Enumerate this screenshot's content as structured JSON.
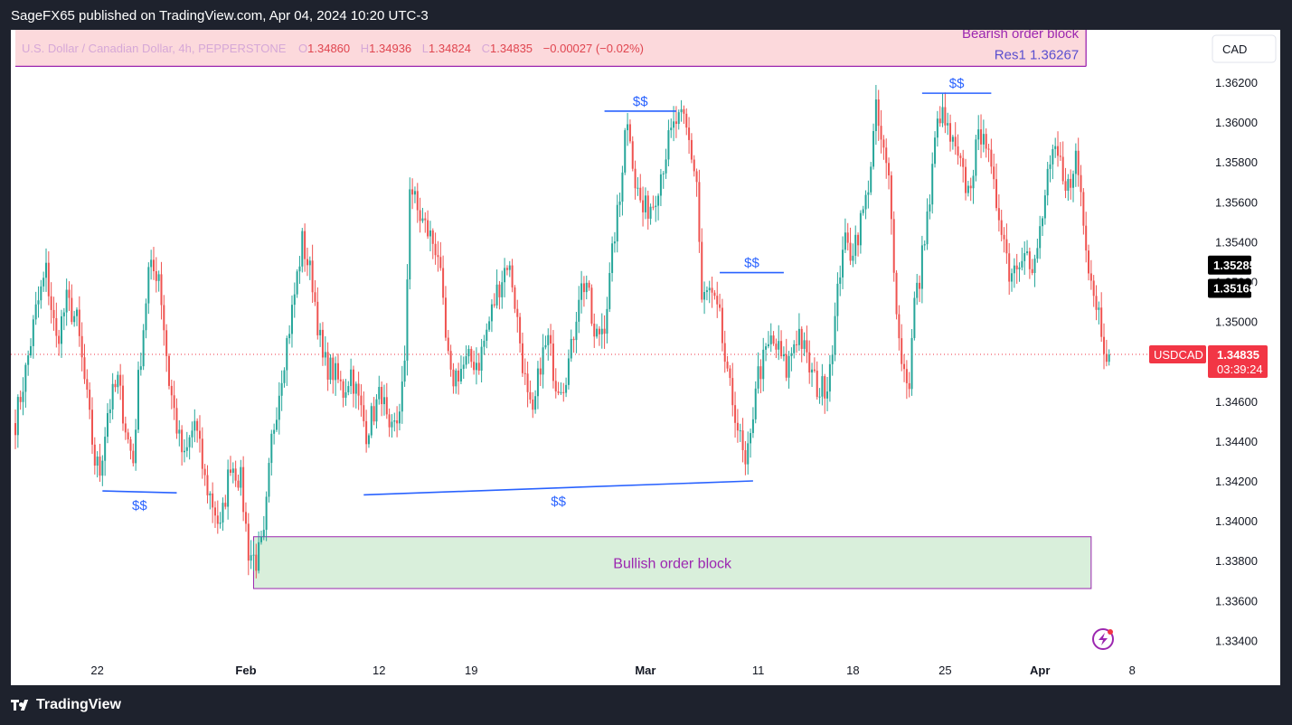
{
  "header": {
    "published_text": "SageFX65 published on TradingView.com, Apr 04, 2024 10:20 UTC-3"
  },
  "footer": {
    "brand": "TradingView"
  },
  "legend": {
    "symbol_desc": "U.S. Dollar / Canadian Dollar, 4h, PEPPERSTONE",
    "o_label": "O",
    "o_value": "1.34860",
    "h_label": "H",
    "h_value": "1.34936",
    "l_label": "L",
    "l_value": "1.34824",
    "c_label": "C",
    "c_value": "1.34835",
    "change": "−0.00027 (−0.02%)"
  },
  "currency_button": "CAD",
  "colors": {
    "up": "#26a69a",
    "down": "#ef5350",
    "annotation_blue": "#2962ff",
    "bearish_fill": "#fcd9dc",
    "bullish_fill": "#d9efdb",
    "zone_border": "#9c27b0",
    "zone_text": "#9c27b0",
    "last_price_bg": "#f23645",
    "marker_bg": "#000000"
  },
  "chart_data": {
    "type": "candlestick",
    "symbol": "USDCAD",
    "timeframe": "4h",
    "ylim": [
      1.333,
      1.3625
    ],
    "y_ticks": [
      "1.36200",
      "1.36000",
      "1.35800",
      "1.35600",
      "1.35400",
      "1.35200",
      "1.35000",
      "1.34800",
      "1.34600",
      "1.34400",
      "1.34200",
      "1.34000",
      "1.33800",
      "1.33600",
      "1.33400"
    ],
    "x_ticks": [
      {
        "label": "22",
        "bar": 32,
        "major": false
      },
      {
        "label": "Feb",
        "bar": 90,
        "major": true
      },
      {
        "label": "12",
        "bar": 142,
        "major": false
      },
      {
        "label": "19",
        "bar": 178,
        "major": false
      },
      {
        "label": "Mar",
        "bar": 246,
        "major": true
      },
      {
        "label": "11",
        "bar": 290,
        "major": false
      },
      {
        "label": "18",
        "bar": 327,
        "major": false
      },
      {
        "label": "25",
        "bar": 363,
        "major": false
      },
      {
        "label": "Apr",
        "bar": 400,
        "major": true
      },
      {
        "label": "8",
        "bar": 436,
        "major": false
      }
    ],
    "waypoints": [
      [
        0,
        1.345
      ],
      [
        4,
        1.3475
      ],
      [
        8,
        1.3505
      ],
      [
        12,
        1.3525
      ],
      [
        16,
        1.349
      ],
      [
        20,
        1.351
      ],
      [
        24,
        1.35
      ],
      [
        28,
        1.346
      ],
      [
        31,
        1.343
      ],
      [
        33,
        1.3425
      ],
      [
        36,
        1.3455
      ],
      [
        40,
        1.347
      ],
      [
        44,
        1.344
      ],
      [
        46,
        1.343
      ],
      [
        48,
        1.347
      ],
      [
        52,
        1.3525
      ],
      [
        56,
        1.3525
      ],
      [
        60,
        1.347
      ],
      [
        64,
        1.344
      ],
      [
        66,
        1.343
      ],
      [
        70,
        1.345
      ],
      [
        74,
        1.342
      ],
      [
        78,
        1.3405
      ],
      [
        80,
        1.3395
      ],
      [
        84,
        1.343
      ],
      [
        88,
        1.342
      ],
      [
        91,
        1.3385
      ],
      [
        94,
        1.338
      ],
      [
        97,
        1.339
      ],
      [
        100,
        1.344
      ],
      [
        104,
        1.3475
      ],
      [
        108,
        1.3505
      ],
      [
        112,
        1.354
      ],
      [
        116,
        1.352
      ],
      [
        120,
        1.348
      ],
      [
        124,
        1.3475
      ],
      [
        128,
        1.3465
      ],
      [
        131,
        1.3475
      ],
      [
        135,
        1.3455
      ],
      [
        137,
        1.3445
      ],
      [
        140,
        1.3455
      ],
      [
        143,
        1.3465
      ],
      [
        146,
        1.344
      ],
      [
        149,
        1.345
      ],
      [
        152,
        1.3475
      ],
      [
        154,
        1.357
      ],
      [
        157,
        1.3555
      ],
      [
        161,
        1.3545
      ],
      [
        165,
        1.3535
      ],
      [
        168,
        1.349
      ],
      [
        170,
        1.347
      ],
      [
        173,
        1.3475
      ],
      [
        177,
        1.348
      ],
      [
        181,
        1.348
      ],
      [
        184,
        1.3495
      ],
      [
        188,
        1.3515
      ],
      [
        192,
        1.353
      ],
      [
        194,
        1.352
      ],
      [
        197,
        1.349
      ],
      [
        200,
        1.346
      ],
      [
        202,
        1.345
      ],
      [
        205,
        1.348
      ],
      [
        208,
        1.349
      ],
      [
        211,
        1.347
      ],
      [
        214,
        1.347
      ],
      [
        217,
        1.3485
      ],
      [
        220,
        1.3515
      ],
      [
        223,
        1.352
      ],
      [
        226,
        1.349
      ],
      [
        230,
        1.35
      ],
      [
        232,
        1.352
      ],
      [
        234,
        1.3545
      ],
      [
        236,
        1.356
      ],
      [
        238,
        1.36
      ],
      [
        240,
        1.3595
      ],
      [
        242,
        1.357
      ],
      [
        245,
        1.3555
      ],
      [
        249,
        1.356
      ],
      [
        252,
        1.3575
      ],
      [
        255,
        1.359
      ],
      [
        258,
        1.36
      ],
      [
        261,
        1.36
      ],
      [
        263,
        1.359
      ],
      [
        266,
        1.357
      ],
      [
        268,
        1.351
      ],
      [
        271,
        1.3515
      ],
      [
        275,
        1.35
      ],
      [
        278,
        1.347
      ],
      [
        281,
        1.3455
      ],
      [
        283,
        1.344
      ],
      [
        285,
        1.3425
      ],
      [
        287,
        1.344
      ],
      [
        289,
        1.347
      ],
      [
        292,
        1.348
      ],
      [
        295,
        1.349
      ],
      [
        298,
        1.3485
      ],
      [
        301,
        1.3475
      ],
      [
        304,
        1.349
      ],
      [
        306,
        1.3495
      ],
      [
        309,
        1.348
      ],
      [
        312,
        1.347
      ],
      [
        314,
        1.3465
      ],
      [
        317,
        1.347
      ],
      [
        320,
        1.35
      ],
      [
        323,
        1.354
      ],
      [
        326,
        1.3535
      ],
      [
        329,
        1.3545
      ],
      [
        332,
        1.356
      ],
      [
        334,
        1.358
      ],
      [
        336,
        1.3605
      ],
      [
        338,
        1.359
      ],
      [
        341,
        1.357
      ],
      [
        343,
        1.353
      ],
      [
        345,
        1.349
      ],
      [
        347,
        1.3475
      ],
      [
        349,
        1.347
      ],
      [
        351,
        1.351
      ],
      [
        353,
        1.352
      ],
      [
        355,
        1.3545
      ],
      [
        357,
        1.356
      ],
      [
        359,
        1.359
      ],
      [
        361,
        1.3605
      ],
      [
        364,
        1.3595
      ],
      [
        368,
        1.358
      ],
      [
        372,
        1.3565
      ],
      [
        375,
        1.3585
      ],
      [
        378,
        1.36
      ],
      [
        380,
        1.358
      ],
      [
        382,
        1.3565
      ],
      [
        385,
        1.355
      ],
      [
        388,
        1.3525
      ],
      [
        391,
        1.353
      ],
      [
        394,
        1.354
      ],
      [
        397,
        1.352
      ],
      [
        400,
        1.3545
      ],
      [
        403,
        1.357
      ],
      [
        406,
        1.3585
      ],
      [
        409,
        1.3575
      ],
      [
        412,
        1.3565
      ],
      [
        414,
        1.3585
      ],
      [
        416,
        1.3565
      ],
      [
        419,
        1.353
      ],
      [
        421,
        1.3515
      ],
      [
        423,
        1.3505
      ],
      [
        425,
        1.349
      ],
      [
        427,
        1.34835
      ]
    ],
    "last_bar": 427,
    "last_price": {
      "symbol_label": "USDCAD",
      "value": "1.34835",
      "countdown": "03:39:24"
    },
    "price_markers": [
      "1.35285",
      "1.35168"
    ],
    "annotations": {
      "liquidity_label": "$$",
      "liquidity_lines": [
        {
          "x1": 34,
          "y1": 1.3415,
          "x2": 63,
          "y2": 1.3414
        },
        {
          "x1": 136,
          "y1": 1.3413,
          "x2": 288,
          "y2": 1.342
        },
        {
          "x1": 230,
          "y1": 1.36055,
          "x2": 258,
          "y2": 1.36055
        },
        {
          "x1": 275,
          "y1": 1.35245,
          "x2": 300,
          "y2": 1.35245
        },
        {
          "x1": 354,
          "y1": 1.36145,
          "x2": 381,
          "y2": 1.36145
        }
      ],
      "bearish_block": {
        "label": "Bearish order block",
        "sublabel": "Res1 1.36267",
        "x1": 0,
        "x2": 418,
        "y_top": 1.365,
        "y_bottom": 1.3628
      },
      "bullish_block": {
        "label": "Bullish order block",
        "x1": 93,
        "x2": 420,
        "y_top": 1.3392,
        "y_bottom": 1.3366
      }
    }
  }
}
